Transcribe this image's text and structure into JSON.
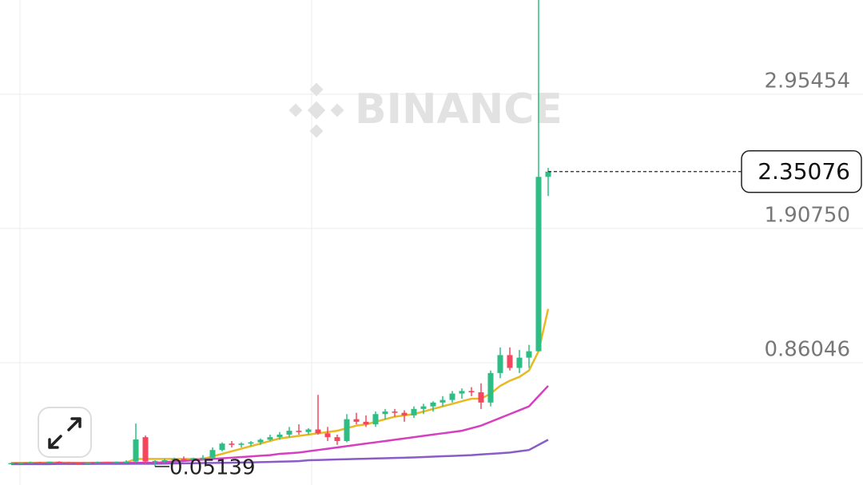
{
  "chart_data": {
    "type": "candlestick",
    "watermark": "BINANCE",
    "ylim": [
      -0.093,
      3.689
    ],
    "yticks": [
      0.86046,
      {
        "value": 1.9075,
        "label": "1.90750"
      },
      2.95454
    ],
    "grid": true,
    "up_color": "#2ebd85",
    "down_color": "#f6465d",
    "current_price": 2.35076,
    "low_label": 0.05139,
    "open": [
      0.075,
      0.078,
      0.08,
      0.085,
      0.08,
      0.088,
      0.082,
      0.079,
      0.072,
      0.082,
      0.086,
      0.08,
      0.088,
      0.09,
      0.28,
      0.09,
      0.095,
      0.1,
      0.11,
      0.105,
      0.115,
      0.12,
      0.18,
      0.23,
      0.22,
      0.23,
      0.24,
      0.26,
      0.28,
      0.3,
      0.33,
      0.32,
      0.34,
      0.31,
      0.28,
      0.25,
      0.42,
      0.4,
      0.38,
      0.46,
      0.48,
      0.47,
      0.45,
      0.5,
      0.52,
      0.55,
      0.57,
      0.62,
      0.64,
      0.63,
      0.55,
      0.78,
      0.92,
      0.82,
      0.9,
      0.95,
      2.31
    ],
    "high": [
      0.08,
      0.083,
      0.09,
      0.088,
      0.09,
      0.092,
      0.087,
      0.083,
      0.085,
      0.09,
      0.088,
      0.09,
      0.1,
      0.386,
      0.293,
      0.1,
      0.11,
      0.12,
      0.13,
      0.12,
      0.14,
      0.2,
      0.24,
      0.25,
      0.24,
      0.25,
      0.27,
      0.3,
      0.32,
      0.36,
      0.38,
      0.35,
      0.61,
      0.36,
      0.3,
      0.46,
      0.47,
      0.45,
      0.48,
      0.5,
      0.5,
      0.49,
      0.52,
      0.54,
      0.56,
      0.6,
      0.64,
      0.66,
      0.67,
      0.7,
      0.8,
      0.98,
      0.98,
      0.96,
      1.0,
      3.69,
      2.38
    ],
    "low": [
      0.07,
      0.072,
      0.075,
      0.078,
      0.076,
      0.08,
      0.075,
      0.07,
      0.07,
      0.078,
      0.078,
      0.077,
      0.08,
      0.08,
      0.07,
      0.05139,
      0.08,
      0.09,
      0.1,
      0.095,
      0.1,
      0.11,
      0.17,
      0.2,
      0.2,
      0.21,
      0.22,
      0.25,
      0.26,
      0.28,
      0.3,
      0.3,
      0.3,
      0.25,
      0.22,
      0.24,
      0.38,
      0.36,
      0.36,
      0.42,
      0.44,
      0.4,
      0.43,
      0.46,
      0.48,
      0.52,
      0.55,
      0.58,
      0.6,
      0.5,
      0.52,
      0.74,
      0.8,
      0.78,
      0.82,
      0.95,
      2.16
    ],
    "close": [
      0.078,
      0.08,
      0.085,
      0.08,
      0.088,
      0.082,
      0.079,
      0.072,
      0.082,
      0.086,
      0.08,
      0.088,
      0.09,
      0.262,
      0.09,
      0.095,
      0.1,
      0.11,
      0.105,
      0.115,
      0.12,
      0.18,
      0.23,
      0.22,
      0.23,
      0.24,
      0.26,
      0.28,
      0.3,
      0.33,
      0.32,
      0.34,
      0.31,
      0.28,
      0.25,
      0.42,
      0.4,
      0.38,
      0.46,
      0.48,
      0.47,
      0.45,
      0.5,
      0.52,
      0.55,
      0.57,
      0.62,
      0.64,
      0.63,
      0.55,
      0.78,
      0.92,
      0.82,
      0.9,
      0.95,
      2.31,
      2.35076
    ],
    "series": [
      {
        "color": "#e8b923",
        "values": [
          0.078,
          0.079,
          0.08,
          0.081,
          0.082,
          0.082,
          0.081,
          0.08,
          0.08,
          0.081,
          0.082,
          0.082,
          0.083,
          0.11,
          0.11,
          0.11,
          0.11,
          0.11,
          0.11,
          0.11,
          0.11,
          0.13,
          0.15,
          0.17,
          0.19,
          0.21,
          0.23,
          0.25,
          0.27,
          0.28,
          0.29,
          0.3,
          0.31,
          0.32,
          0.33,
          0.35,
          0.37,
          0.38,
          0.4,
          0.42,
          0.44,
          0.45,
          0.46,
          0.48,
          0.5,
          0.52,
          0.54,
          0.56,
          0.58,
          0.58,
          0.62,
          0.68,
          0.72,
          0.75,
          0.8,
          0.95,
          1.28
        ]
      },
      {
        "color": "#d63fbf",
        "values": [
          0.075,
          0.075,
          0.075,
          0.076,
          0.076,
          0.076,
          0.077,
          0.077,
          0.077,
          0.078,
          0.078,
          0.078,
          0.079,
          0.08,
          0.08,
          0.08,
          0.085,
          0.09,
          0.095,
          0.1,
          0.105,
          0.11,
          0.115,
          0.12,
          0.125,
          0.13,
          0.135,
          0.14,
          0.15,
          0.155,
          0.16,
          0.17,
          0.18,
          0.19,
          0.2,
          0.21,
          0.22,
          0.23,
          0.24,
          0.25,
          0.26,
          0.27,
          0.28,
          0.29,
          0.3,
          0.31,
          0.32,
          0.33,
          0.35,
          0.37,
          0.4,
          0.43,
          0.46,
          0.49,
          0.52,
          0.6,
          0.68
        ]
      },
      {
        "color": "#8a5cc6",
        "values": [
          0.07,
          0.07,
          0.07,
          0.07,
          0.07,
          0.071,
          0.071,
          0.071,
          0.071,
          0.072,
          0.072,
          0.072,
          0.072,
          0.073,
          0.073,
          0.073,
          0.074,
          0.075,
          0.076,
          0.077,
          0.078,
          0.079,
          0.08,
          0.081,
          0.082,
          0.083,
          0.085,
          0.087,
          0.089,
          0.091,
          0.093,
          0.1,
          0.102,
          0.104,
          0.106,
          0.108,
          0.11,
          0.112,
          0.114,
          0.116,
          0.118,
          0.12,
          0.122,
          0.125,
          0.128,
          0.131,
          0.134,
          0.137,
          0.14,
          0.145,
          0.15,
          0.155,
          0.16,
          0.17,
          0.18,
          0.22,
          0.26
        ]
      }
    ]
  }
}
